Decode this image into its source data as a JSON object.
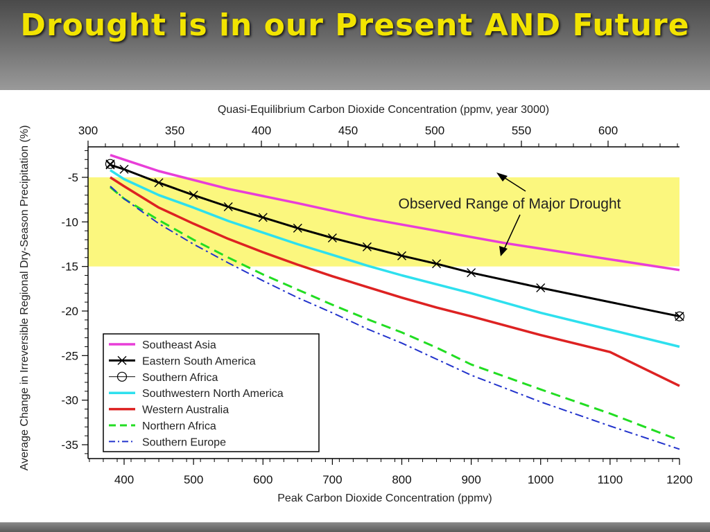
{
  "slide": {
    "title": "Drought is in our Present AND Future"
  },
  "colors": {
    "title": "#f2e400",
    "band": "#fbf77e",
    "southeast_asia": "#e83ed8",
    "eastern_south_america": "#000000",
    "southern_africa": "#000000",
    "southwestern_north_america": "#2ee0ee",
    "western_australia": "#dd2222",
    "northern_africa": "#22dd22",
    "southern_europe": "#2233cc"
  },
  "chart_data": {
    "type": "line",
    "top_axis_label": "Quasi-Equilibrium Carbon Dioxide Concentration (ppmv, year 3000)",
    "xlabel": "Peak Carbon Dioxide Concentration (ppmv)",
    "ylabel": "Average Change in Irreversible Regional Dry-Season Precipitation (%)",
    "xlim": [
      350,
      1200
    ],
    "ylim": [
      -37,
      -1.8
    ],
    "top_xlim": [
      300,
      640
    ],
    "x_ticks": [
      400,
      500,
      600,
      700,
      800,
      900,
      1000,
      1100,
      1200
    ],
    "y_ticks": [
      -5,
      -10,
      -15,
      -20,
      -25,
      -30,
      -35
    ],
    "top_ticks": [
      300,
      350,
      400,
      450,
      500,
      550,
      600
    ],
    "band": {
      "from": -15,
      "to": -5,
      "label": "Observed Range of Major Drought"
    },
    "legend_position": "bottom-left",
    "series": [
      {
        "name": "Southeast Asia",
        "key": "southeast_asia",
        "style": "solid",
        "x": [
          380,
          450,
          550,
          650,
          750,
          850,
          950,
          1050,
          1150,
          1200
        ],
        "y": [
          -2.5,
          -4.3,
          -6.3,
          -7.9,
          -9.6,
          -11.0,
          -12.4,
          -13.6,
          -14.8,
          -15.4
        ]
      },
      {
        "name": "Eastern South America",
        "key": "eastern_south_america",
        "style": "solid-x",
        "x": [
          380,
          400,
          450,
          500,
          550,
          600,
          650,
          700,
          750,
          800,
          850,
          900,
          1000,
          1100,
          1200
        ],
        "y": [
          -3.6,
          -4.1,
          -5.6,
          -7.0,
          -8.3,
          -9.5,
          -10.7,
          -11.8,
          -12.8,
          -13.8,
          -14.7,
          -15.7,
          -17.4,
          -19.0,
          -20.6
        ],
        "markers_x": [
          380,
          400,
          450,
          500,
          550,
          600,
          650,
          700,
          750,
          800,
          850,
          900,
          1000,
          1200
        ],
        "markers_y": [
          -3.6,
          -4.1,
          -5.6,
          -7.0,
          -8.3,
          -9.5,
          -10.7,
          -11.8,
          -12.8,
          -13.8,
          -14.7,
          -15.7,
          -17.4,
          -20.6
        ]
      },
      {
        "name": "Southern Africa",
        "key": "southern_africa",
        "style": "circle",
        "markers_x": [
          380,
          1200
        ],
        "markers_y": [
          -3.5,
          -20.6
        ]
      },
      {
        "name": "Southwestern North America",
        "key": "southwestern_north_america",
        "style": "solid",
        "x": [
          380,
          400,
          450,
          500,
          550,
          600,
          650,
          700,
          750,
          800,
          850,
          900,
          1000,
          1100,
          1200
        ],
        "y": [
          -4.2,
          -5.2,
          -7.0,
          -8.4,
          -9.9,
          -11.2,
          -12.5,
          -13.7,
          -14.9,
          -16.0,
          -17.0,
          -18.0,
          -20.2,
          -22.1,
          -24.0
        ]
      },
      {
        "name": "Western Australia",
        "key": "western_australia",
        "style": "solid",
        "x": [
          380,
          400,
          450,
          500,
          550,
          600,
          650,
          700,
          750,
          800,
          850,
          900,
          1000,
          1100,
          1200
        ],
        "y": [
          -5.0,
          -6.0,
          -8.4,
          -10.2,
          -11.9,
          -13.4,
          -14.8,
          -16.1,
          -17.3,
          -18.5,
          -19.6,
          -20.6,
          -22.7,
          -24.6,
          -28.4
        ]
      },
      {
        "name": "Northern Africa",
        "key": "northern_africa",
        "style": "dash",
        "x": [
          380,
          400,
          450,
          500,
          550,
          600,
          650,
          700,
          750,
          800,
          850,
          900,
          1000,
          1100,
          1200
        ],
        "y": [
          -6.1,
          -7.4,
          -9.8,
          -12.0,
          -14.0,
          -15.9,
          -17.6,
          -19.3,
          -20.9,
          -22.4,
          -24.1,
          -26.0,
          -28.8,
          -31.5,
          -34.5
        ]
      },
      {
        "name": "Southern Europe",
        "key": "southern_europe",
        "style": "dashdot",
        "x": [
          380,
          400,
          450,
          500,
          550,
          600,
          650,
          700,
          750,
          800,
          850,
          900,
          1000,
          1100,
          1200
        ],
        "y": [
          -6.0,
          -7.4,
          -10.2,
          -12.5,
          -14.6,
          -16.6,
          -18.5,
          -20.2,
          -22.0,
          -23.6,
          -25.4,
          -27.2,
          -30.2,
          -32.9,
          -35.5
        ]
      }
    ]
  }
}
